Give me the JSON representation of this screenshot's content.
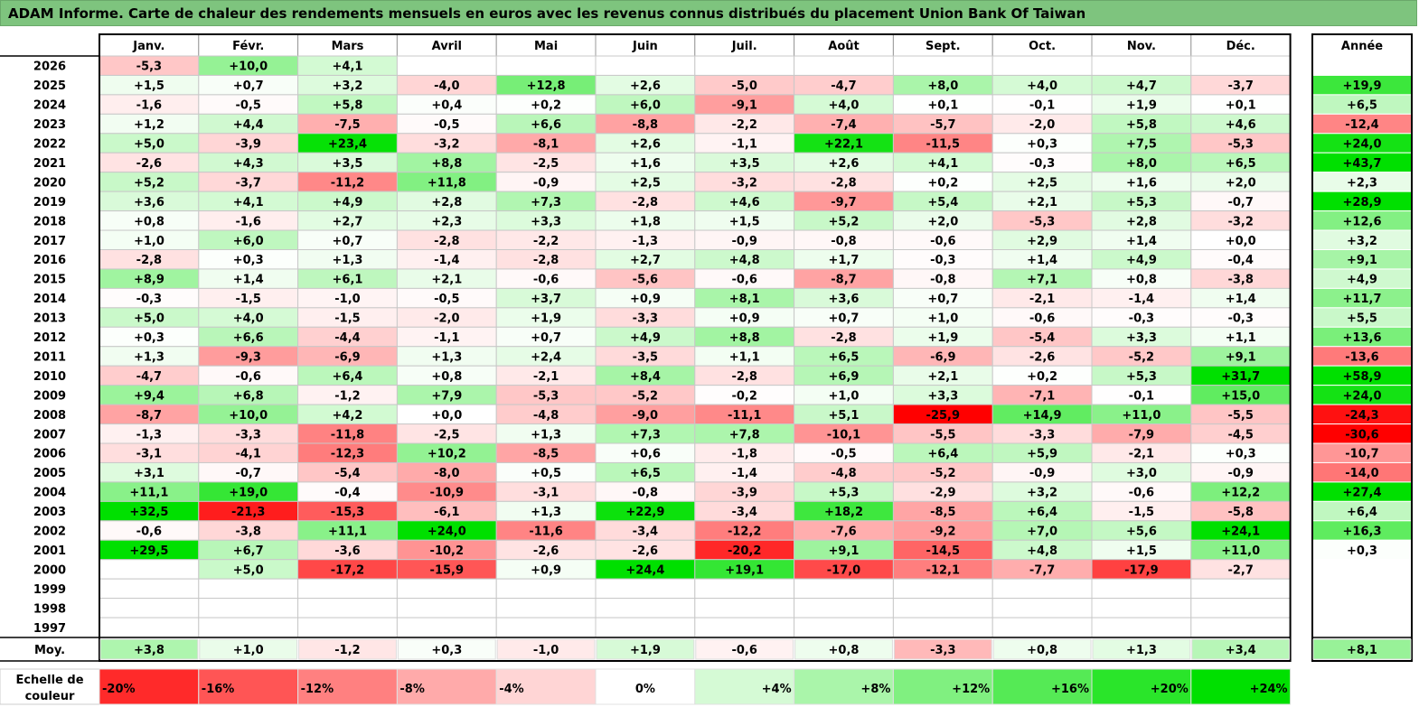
{
  "title": "ADAM Informe. Carte de chaleur des rendements mensuels en euros avec les revenus connus distribués du placement Union Bank Of Taiwan",
  "chart_data": {
    "type": "heatmap",
    "title": "ADAM Informe. Carte de chaleur des rendements mensuels en euros avec les revenus connus distribués du placement Union Bank Of Taiwan",
    "months": [
      "Janv.",
      "Févr.",
      "Mars",
      "Avril",
      "Mai",
      "Juin",
      "Juil.",
      "Août",
      "Sept.",
      "Oct.",
      "Nov.",
      "Déc."
    ],
    "year_header": "Année",
    "average_label": "Moy.",
    "rows": [
      {
        "year": "2026",
        "months": [
          "-5,3",
          "+10,0",
          "+4,1",
          "",
          "",
          "",
          "",
          "",
          "",
          "",
          "",
          ""
        ],
        "annual": ""
      },
      {
        "year": "2025",
        "months": [
          "+1,5",
          "+0,7",
          "+3,2",
          "-4,0",
          "+12,8",
          "+2,6",
          "-5,0",
          "-4,7",
          "+8,0",
          "+4,0",
          "+4,7",
          "-3,7"
        ],
        "annual": "+19,9"
      },
      {
        "year": "2024",
        "months": [
          "-1,6",
          "-0,5",
          "+5,8",
          "+0,4",
          "+0,2",
          "+6,0",
          "-9,1",
          "+4,0",
          "+0,1",
          "-0,1",
          "+1,9",
          "+0,1"
        ],
        "annual": "+6,5"
      },
      {
        "year": "2023",
        "months": [
          "+1,2",
          "+4,4",
          "-7,5",
          "-0,5",
          "+6,6",
          "-8,8",
          "-2,2",
          "-7,4",
          "-5,7",
          "-2,0",
          "+5,8",
          "+4,6"
        ],
        "annual": "-12,4"
      },
      {
        "year": "2022",
        "months": [
          "+5,0",
          "-3,9",
          "+23,4",
          "-3,2",
          "-8,1",
          "+2,6",
          "-1,1",
          "+22,1",
          "-11,5",
          "+0,3",
          "+7,5",
          "-5,3"
        ],
        "annual": "+24,0"
      },
      {
        "year": "2021",
        "months": [
          "-2,6",
          "+4,3",
          "+3,5",
          "+8,8",
          "-2,5",
          "+1,6",
          "+3,5",
          "+2,6",
          "+4,1",
          "-0,3",
          "+8,0",
          "+6,5"
        ],
        "annual": "+43,7"
      },
      {
        "year": "2020",
        "months": [
          "+5,2",
          "-3,7",
          "-11,2",
          "+11,8",
          "-0,9",
          "+2,5",
          "-3,2",
          "-2,8",
          "+0,2",
          "+2,5",
          "+1,6",
          "+2,0"
        ],
        "annual": "+2,3"
      },
      {
        "year": "2019",
        "months": [
          "+3,6",
          "+4,1",
          "+4,9",
          "+2,8",
          "+7,3",
          "-2,8",
          "+4,6",
          "-9,7",
          "+5,4",
          "+2,1",
          "+5,3",
          "-0,7"
        ],
        "annual": "+28,9"
      },
      {
        "year": "2018",
        "months": [
          "+0,8",
          "-1,6",
          "+2,7",
          "+2,3",
          "+3,3",
          "+1,8",
          "+1,5",
          "+5,2",
          "+2,0",
          "-5,3",
          "+2,8",
          "-3,2"
        ],
        "annual": "+12,6"
      },
      {
        "year": "2017",
        "months": [
          "+1,0",
          "+6,0",
          "+0,7",
          "-2,8",
          "-2,2",
          "-1,3",
          "-0,9",
          "-0,8",
          "-0,6",
          "+2,9",
          "+1,4",
          "+0,0"
        ],
        "annual": "+3,2"
      },
      {
        "year": "2016",
        "months": [
          "-2,8",
          "+0,3",
          "+1,3",
          "-1,4",
          "-2,8",
          "+2,7",
          "+4,8",
          "+1,7",
          "-0,3",
          "+1,4",
          "+4,9",
          "-0,4"
        ],
        "annual": "+9,1"
      },
      {
        "year": "2015",
        "months": [
          "+8,9",
          "+1,4",
          "+6,1",
          "+2,1",
          "-0,6",
          "-5,6",
          "-0,6",
          "-8,7",
          "-0,8",
          "+7,1",
          "+0,8",
          "-3,8"
        ],
        "annual": "+4,9"
      },
      {
        "year": "2014",
        "months": [
          "-0,3",
          "-1,5",
          "-1,0",
          "-0,5",
          "+3,7",
          "+0,9",
          "+8,1",
          "+3,6",
          "+0,7",
          "-2,1",
          "-1,4",
          "+1,4"
        ],
        "annual": "+11,7"
      },
      {
        "year": "2013",
        "months": [
          "+5,0",
          "+4,0",
          "-1,5",
          "-2,0",
          "+1,9",
          "-3,3",
          "+0,9",
          "+0,7",
          "+1,0",
          "-0,6",
          "-0,3",
          "-0,3"
        ],
        "annual": "+5,5"
      },
      {
        "year": "2012",
        "months": [
          "+0,3",
          "+6,6",
          "-4,4",
          "-1,1",
          "+0,7",
          "+4,9",
          "+8,8",
          "-2,8",
          "+1,9",
          "-5,4",
          "+3,3",
          "+1,1"
        ],
        "annual": "+13,6"
      },
      {
        "year": "2011",
        "months": [
          "+1,3",
          "-9,3",
          "-6,9",
          "+1,3",
          "+2,4",
          "-3,5",
          "+1,1",
          "+6,5",
          "-6,9",
          "-2,6",
          "-5,2",
          "+9,1"
        ],
        "annual": "-13,6"
      },
      {
        "year": "2010",
        "months": [
          "-4,7",
          "-0,6",
          "+6,4",
          "+0,8",
          "-2,1",
          "+8,4",
          "-2,8",
          "+6,9",
          "+2,1",
          "+0,2",
          "+5,3",
          "+31,7"
        ],
        "annual": "+58,9"
      },
      {
        "year": "2009",
        "months": [
          "+9,4",
          "+6,8",
          "-1,2",
          "+7,9",
          "-5,3",
          "-5,2",
          "-0,2",
          "+1,0",
          "+3,3",
          "-7,1",
          "-0,1",
          "+15,0"
        ],
        "annual": "+24,0"
      },
      {
        "year": "2008",
        "months": [
          "-8,7",
          "+10,0",
          "+4,2",
          "+0,0",
          "-4,8",
          "-9,0",
          "-11,1",
          "+5,1",
          "-25,9",
          "+14,9",
          "+11,0",
          "-5,5"
        ],
        "annual": "-24,3"
      },
      {
        "year": "2007",
        "months": [
          "-1,3",
          "-3,3",
          "-11,8",
          "-2,5",
          "+1,3",
          "+7,3",
          "+7,8",
          "-10,1",
          "-5,5",
          "-3,3",
          "-7,9",
          "-4,5"
        ],
        "annual": "-30,6"
      },
      {
        "year": "2006",
        "months": [
          "-3,1",
          "-4,1",
          "-12,3",
          "+10,2",
          "-8,5",
          "+0,6",
          "-1,8",
          "-0,5",
          "+6,4",
          "+5,9",
          "-2,1",
          "+0,3"
        ],
        "annual": "-10,7"
      },
      {
        "year": "2005",
        "months": [
          "+3,1",
          "-0,7",
          "-5,4",
          "-8,0",
          "+0,5",
          "+6,5",
          "-1,4",
          "-4,8",
          "-5,2",
          "-0,9",
          "+3,0",
          "-0,9"
        ],
        "annual": "-14,0"
      },
      {
        "year": "2004",
        "months": [
          "+11,1",
          "+19,0",
          "-0,4",
          "-10,9",
          "-3,1",
          "-0,8",
          "-3,9",
          "+5,3",
          "-2,9",
          "+3,2",
          "-0,6",
          "+12,2"
        ],
        "annual": "+27,4"
      },
      {
        "year": "2003",
        "months": [
          "+32,5",
          "-21,3",
          "-15,3",
          "-6,1",
          "+1,3",
          "+22,9",
          "-3,4",
          "+18,2",
          "-8,5",
          "+6,4",
          "-1,5",
          "-5,8"
        ],
        "annual": "+6,4"
      },
      {
        "year": "2002",
        "months": [
          "-0,6",
          "-3,8",
          "+11,1",
          "+24,0",
          "-11,6",
          "-3,4",
          "-12,2",
          "-7,6",
          "-9,2",
          "+7,0",
          "+5,6",
          "+24,1"
        ],
        "annual": "+16,3"
      },
      {
        "year": "2001",
        "months": [
          "+29,5",
          "+6,7",
          "-3,6",
          "-10,2",
          "-2,6",
          "-2,6",
          "-20,2",
          "+9,1",
          "-14,5",
          "+4,8",
          "+1,5",
          "+11,0"
        ],
        "annual": "+0,3"
      },
      {
        "year": "2000",
        "months": [
          "",
          "+5,0",
          "-17,2",
          "-15,9",
          "+0,9",
          "+24,4",
          "+19,1",
          "-17,0",
          "-12,1",
          "-7,7",
          "-17,9",
          "-2,7"
        ],
        "annual": ""
      },
      {
        "year": "1999",
        "months": [
          "",
          "",
          "",
          "",
          "",
          "",
          "",
          "",
          "",
          "",
          "",
          ""
        ],
        "annual": ""
      },
      {
        "year": "1998",
        "months": [
          "",
          "",
          "",
          "",
          "",
          "",
          "",
          "",
          "",
          "",
          "",
          ""
        ],
        "annual": ""
      },
      {
        "year": "1997",
        "months": [
          "",
          "",
          "",
          "",
          "",
          "",
          "",
          "",
          "",
          "",
          "",
          ""
        ],
        "annual": ""
      }
    ],
    "averages": [
      "+3,8",
      "+1,0",
      "-1,2",
      "+0,3",
      "-1,0",
      "+1,9",
      "-0,6",
      "+0,8",
      "-3,3",
      "+0,8",
      "+1,3",
      "+3,4"
    ],
    "average_annual": "+8,1",
    "scale": {
      "label_line1": "Echelle de",
      "label_line2": "couleur",
      "steps": [
        {
          "label": "-20%",
          "value": -20
        },
        {
          "label": "-16%",
          "value": -16
        },
        {
          "label": "-12%",
          "value": -12
        },
        {
          "label": "-8%",
          "value": -8
        },
        {
          "label": "-4%",
          "value": -4
        },
        {
          "label": "0%",
          "value": 0
        },
        {
          "label": "+4%",
          "value": 4
        },
        {
          "label": "+8%",
          "value": 8
        },
        {
          "label": "+12%",
          "value": 12
        },
        {
          "label": "+16%",
          "value": 16
        },
        {
          "label": "+20%",
          "value": 20
        },
        {
          "label": "+24%",
          "value": 24
        }
      ]
    },
    "colors": {
      "negative_max": "#ff0000",
      "neutral": "#ffffff",
      "positive_max": "#00e000",
      "title_bar": "#7ec47e"
    }
  }
}
